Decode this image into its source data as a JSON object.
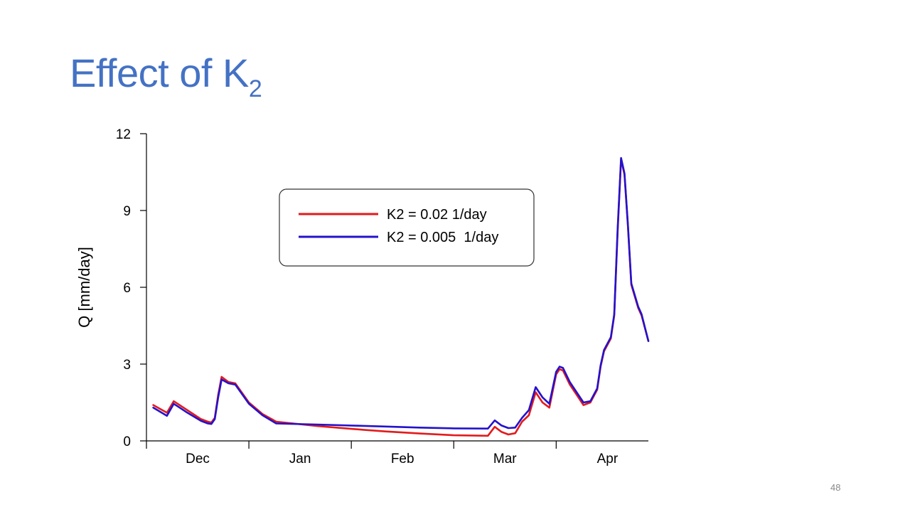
{
  "slide": {
    "title_main": "Effect of K",
    "title_sub": "2",
    "page_number": "48"
  },
  "chart_data": {
    "type": "line",
    "title": "",
    "xlabel": "",
    "ylabel": "Q [mm/day]",
    "xlim": [
      0,
      147
    ],
    "ylim": [
      0,
      12
    ],
    "y_ticks": [
      0,
      3,
      6,
      9,
      12
    ],
    "x_tick_positions": [
      0,
      30,
      60,
      90,
      120
    ],
    "month_labels": [
      {
        "label": "Dec",
        "pos": 15
      },
      {
        "label": "Jan",
        "pos": 45
      },
      {
        "label": "Feb",
        "pos": 75
      },
      {
        "label": "Mar",
        "pos": 105
      },
      {
        "label": "Apr",
        "pos": 135
      }
    ],
    "grid": false,
    "legend_position": "top-center",
    "series": [
      {
        "name": "K2 = 0.02 1/day",
        "color": "#e31a1c",
        "x": [
          2,
          6,
          8,
          12,
          16,
          18,
          19,
          20,
          21,
          22,
          24,
          26,
          30,
          34,
          38,
          50,
          60,
          70,
          80,
          90,
          100,
          102,
          104,
          106,
          108,
          110,
          112,
          114,
          115,
          116,
          118,
          120,
          121,
          122,
          124,
          126,
          128,
          130,
          132,
          133,
          134,
          136,
          137,
          138,
          139,
          140,
          141,
          142,
          144,
          145,
          147
        ],
        "values": [
          1.4,
          1.1,
          1.55,
          1.2,
          0.85,
          0.75,
          0.72,
          0.9,
          1.8,
          2.5,
          2.3,
          2.25,
          1.5,
          1.05,
          0.75,
          0.58,
          0.47,
          0.37,
          0.29,
          0.22,
          0.2,
          0.55,
          0.35,
          0.25,
          0.3,
          0.75,
          1.0,
          1.9,
          1.7,
          1.5,
          1.3,
          2.6,
          2.8,
          2.75,
          2.2,
          1.8,
          1.4,
          1.5,
          2.0,
          2.9,
          3.5,
          4.0,
          4.9,
          8.2,
          11.0,
          10.4,
          8.4,
          6.1,
          5.2,
          4.9,
          3.9
        ]
      },
      {
        "name": "K2 = 0.005  1/day",
        "color": "#2412cc",
        "x": [
          2,
          6,
          8,
          12,
          16,
          18,
          19,
          20,
          21,
          22,
          24,
          26,
          30,
          34,
          38,
          50,
          60,
          70,
          80,
          90,
          100,
          102,
          104,
          106,
          108,
          110,
          112,
          114,
          115,
          116,
          118,
          120,
          121,
          122,
          124,
          126,
          128,
          130,
          132,
          133,
          134,
          136,
          137,
          138,
          139,
          140,
          141,
          142,
          144,
          145,
          147
        ],
        "values": [
          1.3,
          0.98,
          1.45,
          1.1,
          0.78,
          0.68,
          0.66,
          0.85,
          1.7,
          2.4,
          2.25,
          2.2,
          1.45,
          1.0,
          0.68,
          0.64,
          0.6,
          0.56,
          0.52,
          0.49,
          0.48,
          0.8,
          0.6,
          0.5,
          0.52,
          0.9,
          1.2,
          2.1,
          1.9,
          1.7,
          1.45,
          2.7,
          2.9,
          2.85,
          2.3,
          1.9,
          1.5,
          1.55,
          2.05,
          2.95,
          3.55,
          4.05,
          4.95,
          8.3,
          11.05,
          10.45,
          8.45,
          6.15,
          5.25,
          4.95,
          3.9
        ]
      }
    ]
  }
}
